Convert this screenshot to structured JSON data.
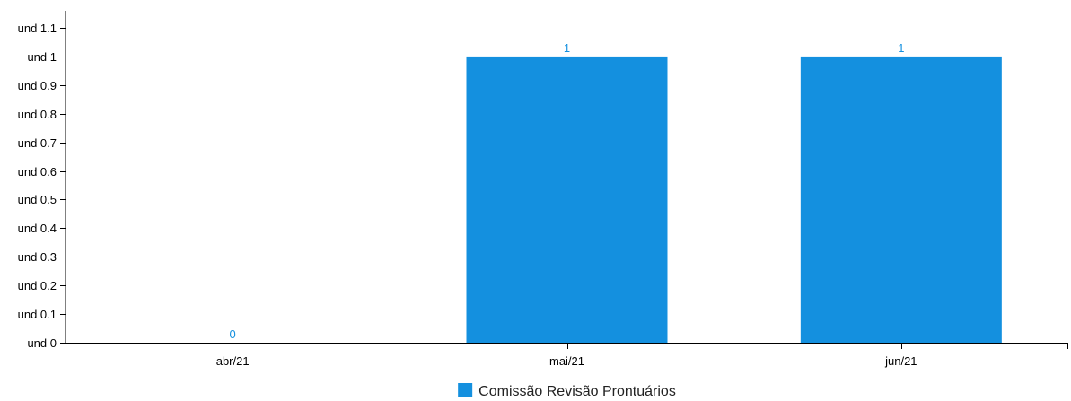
{
  "chart_data": {
    "type": "bar",
    "categories": [
      "abr/21",
      "mai/21",
      "jun/21"
    ],
    "series": [
      {
        "name": "Comissão Revisão Prontuários",
        "values": [
          0,
          1,
          1
        ],
        "color": "#1490df"
      }
    ],
    "data_labels": [
      "0",
      "1",
      "1"
    ],
    "ylim": [
      0,
      1.1
    ],
    "yticks": [
      0,
      0.1,
      0.2,
      0.3,
      0.4,
      0.5,
      0.6,
      0.7,
      0.8,
      0.9,
      1,
      1.1
    ],
    "ytick_labels": [
      "und 0",
      "und 0.1",
      "und 0.2",
      "und 0.3",
      "und 0.4",
      "und 0.5",
      "und 0.6",
      "und 0.7",
      "und 0.8",
      "und 0.9",
      "und 1",
      "und 1.1"
    ],
    "legend_position": "bottom-center",
    "grid": false,
    "title": "",
    "xlabel": "",
    "ylabel": ""
  }
}
